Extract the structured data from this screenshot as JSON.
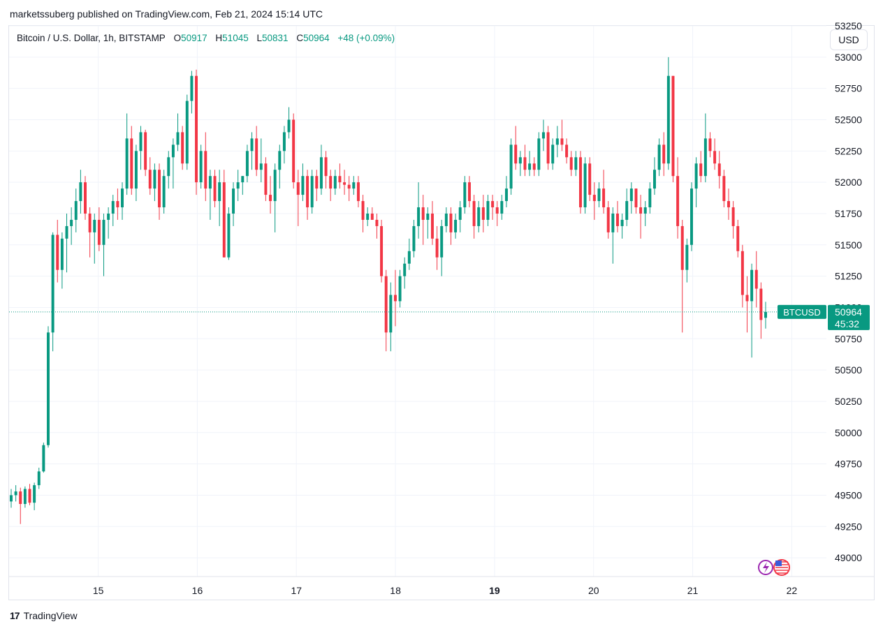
{
  "header": {
    "published": "marketssuberg published on TradingView.com, Feb 21, 2024 15:14 UTC"
  },
  "legend": {
    "symbol": "Bitcoin / U.S. Dollar, 1h, BITSTAMP",
    "o_label": "O",
    "o_value": "50917",
    "h_label": "H",
    "h_value": "51045",
    "l_label": "L",
    "l_value": "50831",
    "c_label": "C",
    "c_value": "50964",
    "change": "+48 (+0.09%)"
  },
  "currency_button": "USD",
  "price_tag": {
    "ticker": "BTCUSD",
    "price": "50964",
    "countdown": "45:32"
  },
  "footer": {
    "brand_mark": "17",
    "brand": "TradingView"
  },
  "colors": {
    "up": "#089981",
    "down": "#f23645",
    "grid": "#f0f3fa",
    "text": "#131722"
  },
  "icons": [
    "lightning-icon",
    "us-flag-icon"
  ],
  "chart_data": {
    "type": "candlestick",
    "title": "Bitcoin / U.S. Dollar, 1h, BITSTAMP",
    "ylim": [
      48850,
      53250
    ],
    "y_ticks": [
      "49000",
      "49250",
      "49500",
      "49750",
      "50000",
      "50250",
      "50500",
      "50750",
      "51000",
      "51250",
      "51500",
      "51750",
      "52000",
      "52250",
      "52500",
      "52750",
      "53000",
      "53250"
    ],
    "x_ticks": [
      {
        "label": "15",
        "day": 15,
        "bold": false
      },
      {
        "label": "16",
        "day": 16,
        "bold": false
      },
      {
        "label": "17",
        "day": 17,
        "bold": false
      },
      {
        "label": "18",
        "day": 18,
        "bold": false
      },
      {
        "label": "19",
        "day": 19,
        "bold": true
      },
      {
        "label": "20",
        "day": 20,
        "bold": false
      },
      {
        "label": "21",
        "day": 21,
        "bold": false
      },
      {
        "label": "22",
        "day": 22,
        "bold": false
      }
    ],
    "x_start_day": 14.1,
    "x_end_day": 22.35,
    "last_price": 50964,
    "candles": [
      [
        49450,
        49550,
        49400,
        49500
      ],
      [
        49500,
        49580,
        49450,
        49530
      ],
      [
        49530,
        49560,
        49270,
        49430
      ],
      [
        49430,
        49570,
        49400,
        49550
      ],
      [
        49550,
        49590,
        49420,
        49440
      ],
      [
        49440,
        49600,
        49380,
        49580
      ],
      [
        49580,
        49720,
        49550,
        49690
      ],
      [
        49690,
        49920,
        49680,
        49900
      ],
      [
        49900,
        50850,
        49880,
        50800
      ],
      [
        50800,
        51600,
        50650,
        51580
      ],
      [
        51580,
        51700,
        51200,
        51300
      ],
      [
        51300,
        51600,
        51150,
        51550
      ],
      [
        51550,
        51750,
        51280,
        51650
      ],
      [
        51650,
        51800,
        51500,
        51700
      ],
      [
        51700,
        51950,
        51600,
        51850
      ],
      [
        51850,
        52100,
        51750,
        52000
      ],
      [
        52000,
        52050,
        51700,
        51750
      ],
      [
        51750,
        51800,
        51400,
        51600
      ],
      [
        51600,
        51750,
        51350,
        51700
      ],
      [
        51700,
        51800,
        51450,
        51500
      ],
      [
        51500,
        51750,
        51250,
        51700
      ],
      [
        51700,
        51800,
        51550,
        51750
      ],
      [
        51750,
        51900,
        51650,
        51850
      ],
      [
        51850,
        51950,
        51700,
        51800
      ],
      [
        51800,
        52000,
        51700,
        51950
      ],
      [
        51950,
        52550,
        51900,
        52350
      ],
      [
        52350,
        52450,
        51900,
        51950
      ],
      [
        51950,
        52300,
        51850,
        52250
      ],
      [
        52250,
        52450,
        52100,
        52400
      ],
      [
        52400,
        52420,
        52050,
        52100
      ],
      [
        52100,
        52200,
        51900,
        51950
      ],
      [
        51950,
        52150,
        51850,
        52100
      ],
      [
        52100,
        52150,
        51700,
        51800
      ],
      [
        51800,
        52100,
        51750,
        52050
      ],
      [
        52050,
        52250,
        51950,
        52200
      ],
      [
        52200,
        52350,
        51950,
        52300
      ],
      [
        52300,
        52550,
        52250,
        52400
      ],
      [
        52400,
        52450,
        52100,
        52150
      ],
      [
        52150,
        52700,
        52100,
        52650
      ],
      [
        52650,
        52890,
        52550,
        52850
      ],
      [
        52850,
        52900,
        51900,
        52000
      ],
      [
        52000,
        52300,
        51950,
        52250
      ],
      [
        52250,
        52400,
        51850,
        51950
      ],
      [
        51950,
        52100,
        51700,
        52050
      ],
      [
        52050,
        52100,
        51800,
        51850
      ],
      [
        51850,
        52100,
        51650,
        52000
      ],
      [
        52000,
        52100,
        51400,
        51400
      ],
      [
        51400,
        51800,
        51380,
        51750
      ],
      [
        51750,
        52000,
        51650,
        51950
      ],
      [
        51950,
        52100,
        51850,
        52000
      ],
      [
        52000,
        52050,
        51900,
        52050
      ],
      [
        52050,
        52300,
        52000,
        52250
      ],
      [
        52250,
        52400,
        52100,
        52350
      ],
      [
        52350,
        52450,
        52050,
        52100
      ],
      [
        52100,
        52350,
        52000,
        52150
      ],
      [
        52150,
        52200,
        51850,
        51900
      ],
      [
        51900,
        52050,
        51750,
        51850
      ],
      [
        51850,
        52150,
        51600,
        52100
      ],
      [
        52100,
        52300,
        51950,
        52250
      ],
      [
        52250,
        52450,
        52150,
        52400
      ],
      [
        52400,
        52600,
        52350,
        52500
      ],
      [
        52500,
        52550,
        51950,
        52000
      ],
      [
        52000,
        52100,
        51650,
        51900
      ],
      [
        51900,
        52150,
        51850,
        52050
      ],
      [
        52050,
        52100,
        51700,
        51800
      ],
      [
        51800,
        52100,
        51750,
        52050
      ],
      [
        52050,
        52100,
        51850,
        51950
      ],
      [
        51950,
        52300,
        51900,
        52200
      ],
      [
        52200,
        52250,
        51950,
        52050
      ],
      [
        52050,
        52100,
        51850,
        51950
      ],
      [
        51950,
        52100,
        51900,
        52050
      ],
      [
        52050,
        52150,
        51950,
        52000
      ],
      [
        52000,
        52100,
        51900,
        51980
      ],
      [
        51980,
        52050,
        51850,
        51950
      ],
      [
        51950,
        52050,
        51900,
        52000
      ],
      [
        52000,
        52050,
        51800,
        51850
      ],
      [
        51850,
        51900,
        51600,
        51700
      ],
      [
        51700,
        51800,
        51650,
        51750
      ],
      [
        51750,
        51800,
        51700,
        51700
      ],
      [
        51700,
        51750,
        51550,
        51650
      ],
      [
        51650,
        51700,
        51200,
        51250
      ],
      [
        51250,
        51300,
        50650,
        50800
      ],
      [
        50800,
        51200,
        50650,
        51100
      ],
      [
        51100,
        51300,
        50850,
        51050
      ],
      [
        51050,
        51300,
        51000,
        51250
      ],
      [
        51250,
        51400,
        51150,
        51350
      ],
      [
        51350,
        51550,
        51300,
        51450
      ],
      [
        51450,
        51700,
        51400,
        51650
      ],
      [
        51650,
        52000,
        51550,
        51800
      ],
      [
        51800,
        51900,
        51500,
        51700
      ],
      [
        51700,
        51800,
        51550,
        51750
      ],
      [
        51750,
        51850,
        51500,
        51550
      ],
      [
        51550,
        51650,
        51300,
        51400
      ],
      [
        51400,
        51700,
        51250,
        51650
      ],
      [
        51650,
        51800,
        51600,
        51750
      ],
      [
        51750,
        51800,
        51500,
        51600
      ],
      [
        51600,
        51750,
        51550,
        51700
      ],
      [
        51700,
        51850,
        51600,
        51800
      ],
      [
        51800,
        52050,
        51750,
        52000
      ],
      [
        52000,
        52050,
        51800,
        51850
      ],
      [
        51850,
        51900,
        51550,
        51650
      ],
      [
        51650,
        51850,
        51600,
        51800
      ],
      [
        51800,
        51900,
        51600,
        51700
      ],
      [
        51700,
        51900,
        51650,
        51850
      ],
      [
        51850,
        51900,
        51700,
        51800
      ],
      [
        51800,
        51850,
        51650,
        51750
      ],
      [
        51750,
        51900,
        51700,
        51850
      ],
      [
        51850,
        52050,
        51800,
        51950
      ],
      [
        51950,
        52350,
        51900,
        52300
      ],
      [
        52300,
        52450,
        52100,
        52150
      ],
      [
        52150,
        52250,
        52050,
        52200
      ],
      [
        52200,
        52300,
        52050,
        52100
      ],
      [
        52100,
        52250,
        52050,
        52150
      ],
      [
        52150,
        52200,
        52050,
        52100
      ],
      [
        52100,
        52400,
        52050,
        52350
      ],
      [
        52350,
        52500,
        52250,
        52400
      ],
      [
        52400,
        52450,
        52100,
        52150
      ],
      [
        52150,
        52350,
        52100,
        52300
      ],
      [
        52300,
        52450,
        52200,
        52350
      ],
      [
        52350,
        52500,
        52250,
        52300
      ],
      [
        52300,
        52350,
        52150,
        52200
      ],
      [
        52200,
        52250,
        52050,
        52100
      ],
      [
        52100,
        52250,
        52050,
        52200
      ],
      [
        52200,
        52250,
        51750,
        51800
      ],
      [
        51800,
        52200,
        51750,
        52150
      ],
      [
        52150,
        52200,
        51850,
        51900
      ],
      [
        51900,
        52000,
        51700,
        51850
      ],
      [
        51850,
        52000,
        51800,
        51950
      ],
      [
        51950,
        52100,
        51750,
        51800
      ],
      [
        51800,
        51850,
        51550,
        51600
      ],
      [
        51600,
        51800,
        51350,
        51750
      ],
      [
        51750,
        51850,
        51600,
        51650
      ],
      [
        51650,
        51750,
        51550,
        51700
      ],
      [
        51700,
        51950,
        51650,
        51850
      ],
      [
        51850,
        52000,
        51750,
        51950
      ],
      [
        51950,
        51950,
        51750,
        51800
      ],
      [
        51800,
        51900,
        51550,
        51750
      ],
      [
        51750,
        51850,
        51650,
        51800
      ],
      [
        51800,
        52000,
        51750,
        51950
      ],
      [
        51950,
        52200,
        51900,
        52100
      ],
      [
        52100,
        52350,
        52050,
        52300
      ],
      [
        52300,
        52400,
        52050,
        52150
      ],
      [
        52150,
        53000,
        52100,
        52850
      ],
      [
        52850,
        52850,
        52000,
        52050
      ],
      [
        52050,
        52200,
        51550,
        51650
      ],
      [
        51650,
        51700,
        50800,
        51300
      ],
      [
        51300,
        51550,
        51200,
        51500
      ],
      [
        51500,
        52000,
        51450,
        51950
      ],
      [
        51950,
        52200,
        51800,
        52150
      ],
      [
        52150,
        52250,
        52000,
        52050
      ],
      [
        52050,
        52550,
        52000,
        52350
      ],
      [
        52350,
        52400,
        52200,
        52250
      ],
      [
        52250,
        52350,
        52100,
        52150
      ],
      [
        52150,
        52250,
        51950,
        52050
      ],
      [
        52050,
        52100,
        51800,
        51850
      ],
      [
        51850,
        51950,
        51700,
        51800
      ],
      [
        51800,
        51850,
        51550,
        51650
      ],
      [
        51650,
        51700,
        51400,
        51450
      ],
      [
        51450,
        51500,
        51000,
        51100
      ],
      [
        51100,
        51250,
        50800,
        51050
      ],
      [
        51050,
        51350,
        50600,
        51300
      ],
      [
        51300,
        51450,
        51000,
        51150
      ],
      [
        51150,
        51200,
        50750,
        50900
      ],
      [
        50917,
        51045,
        50831,
        50964
      ]
    ]
  }
}
